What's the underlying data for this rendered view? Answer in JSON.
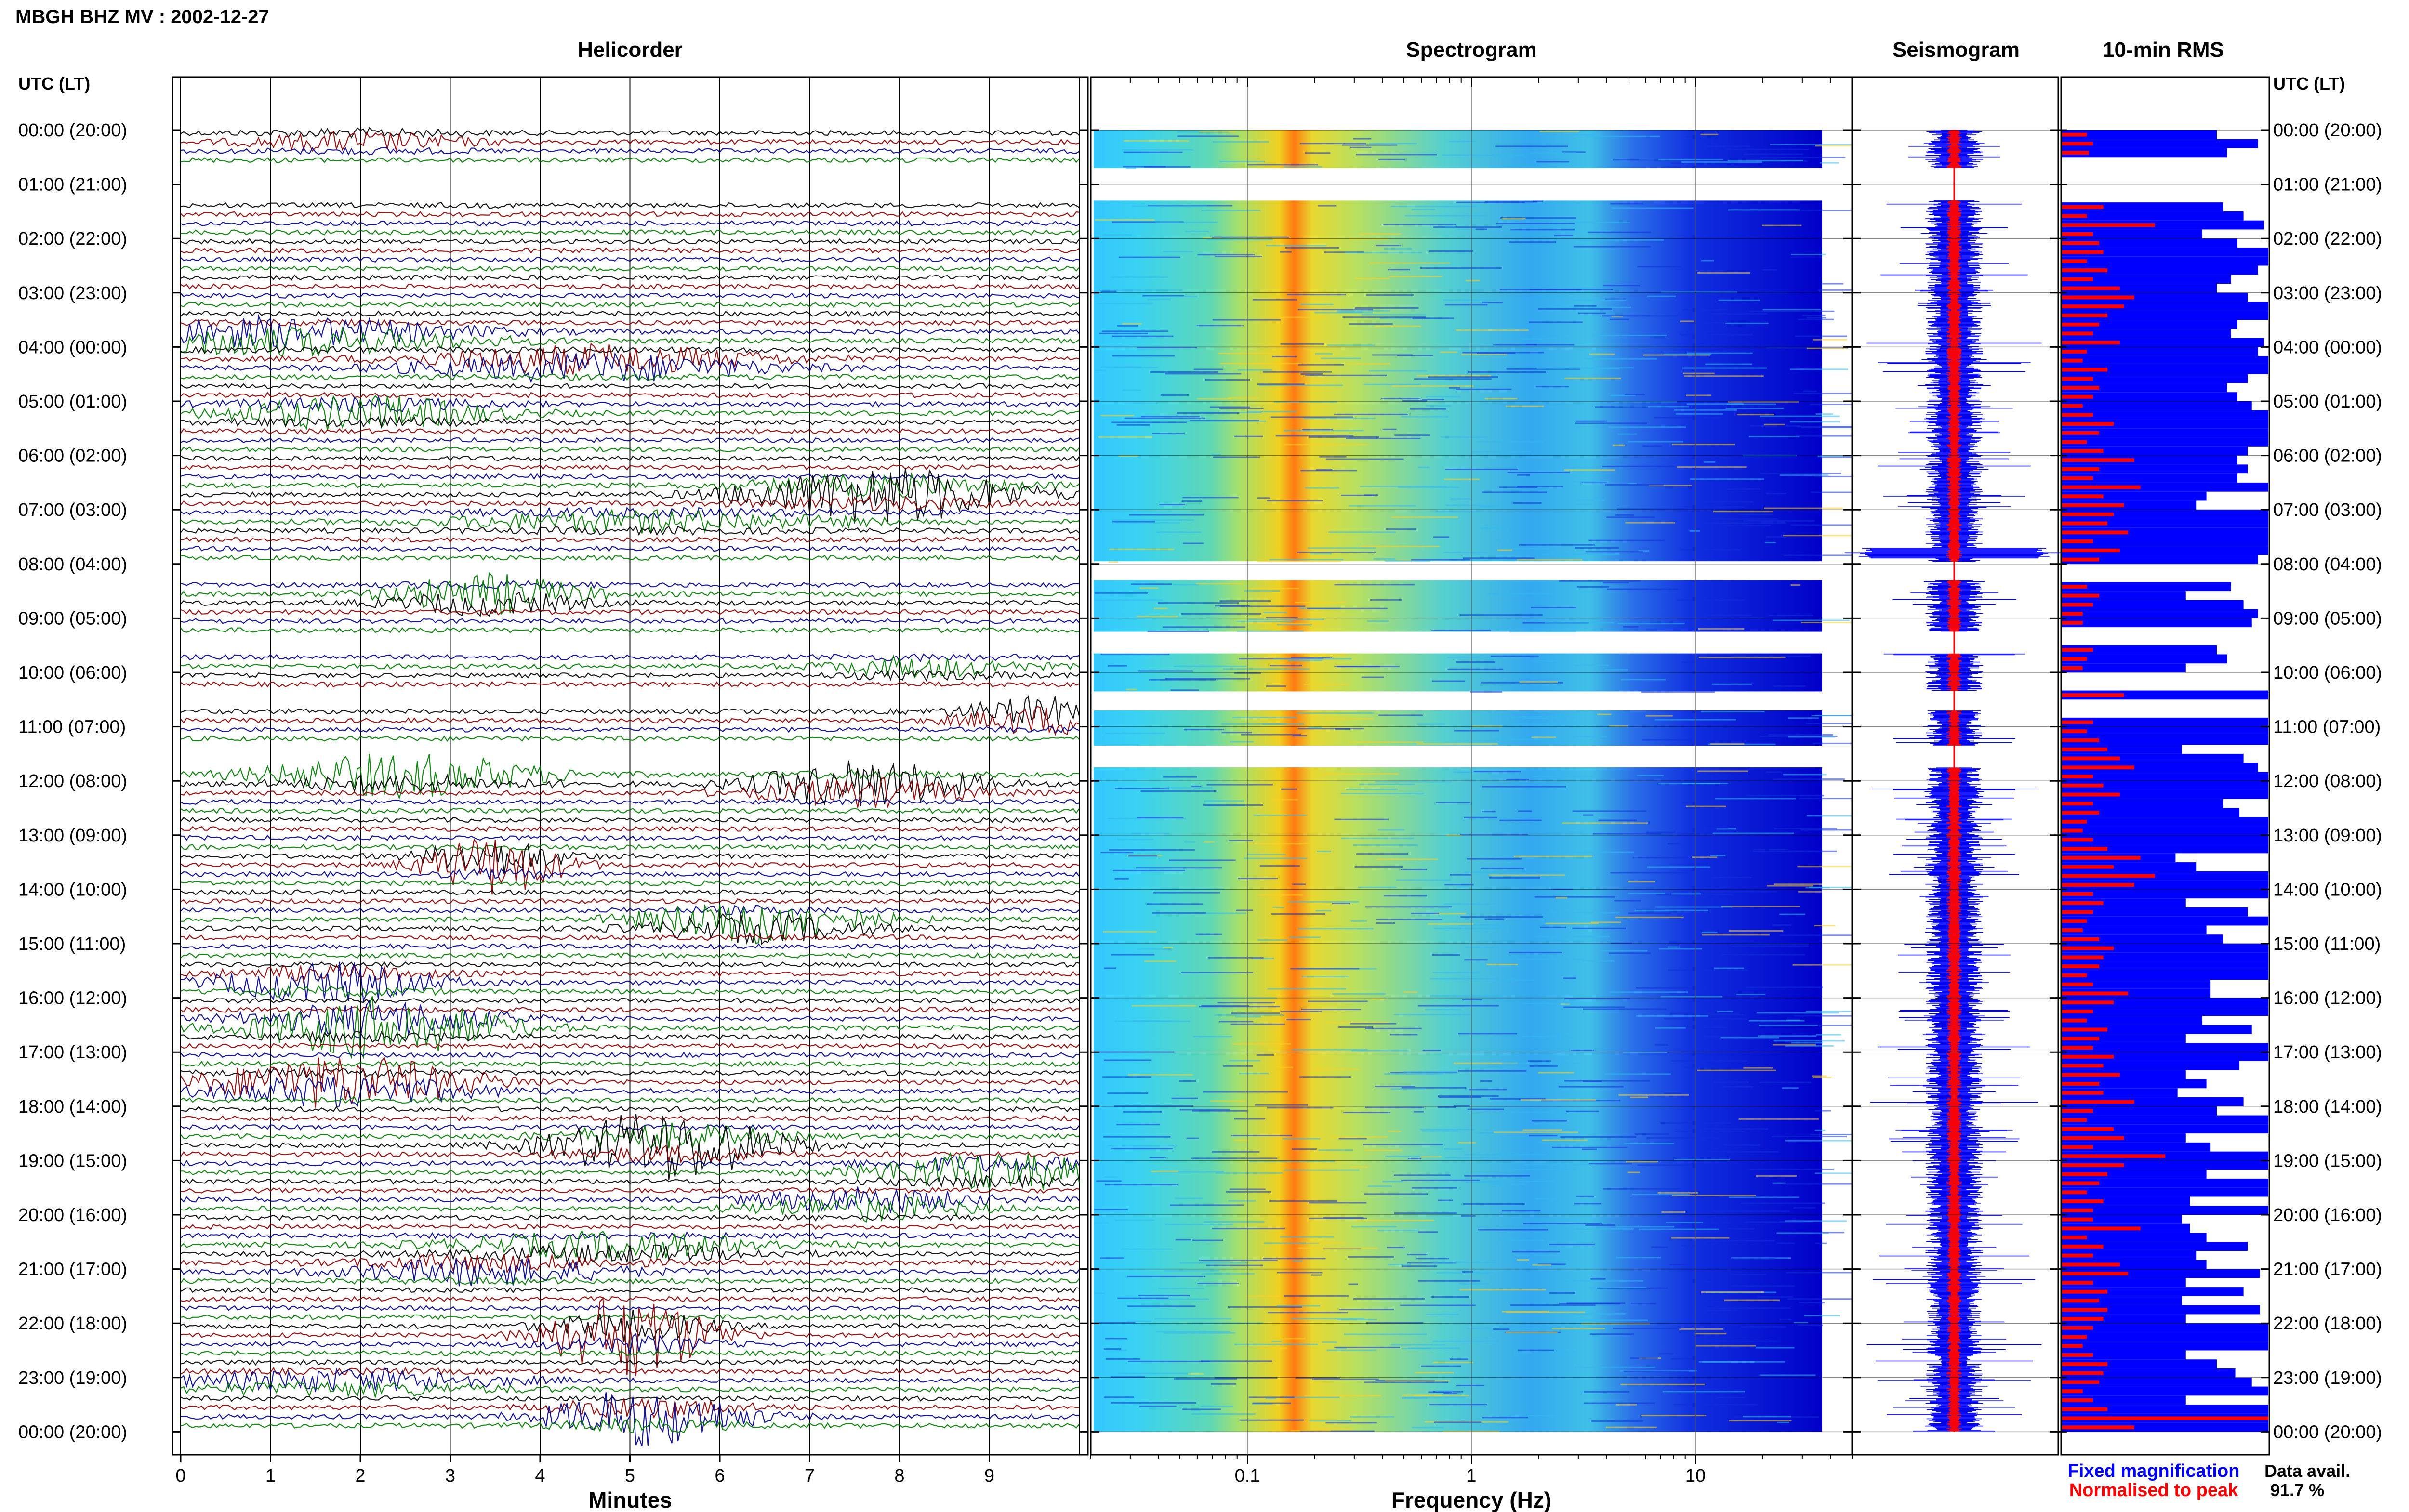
{
  "header": {
    "title": "MBGH BHZ MV : 2002-12-27"
  },
  "panels": {
    "helicorder": "Helicorder",
    "spectrogram": "Spectrogram",
    "seismogram": "Seismogram",
    "rms": "10-min RMS"
  },
  "time_axis": {
    "label": "UTC (LT)",
    "ticks": [
      "00:00 (20:00)",
      "01:00 (21:00)",
      "02:00 (22:00)",
      "03:00 (23:00)",
      "04:00 (00:00)",
      "05:00 (01:00)",
      "06:00 (02:00)",
      "07:00 (03:00)",
      "08:00 (04:00)",
      "09:00 (05:00)",
      "10:00 (06:00)",
      "11:00 (07:00)",
      "12:00 (08:00)",
      "13:00 (09:00)",
      "14:00 (10:00)",
      "15:00 (11:00)",
      "16:00 (12:00)",
      "17:00 (13:00)",
      "18:00 (14:00)",
      "19:00 (15:00)",
      "20:00 (16:00)",
      "21:00 (17:00)",
      "22:00 (18:00)",
      "23:00 (19:00)",
      "00:00 (20:00)"
    ]
  },
  "minutes_axis": {
    "label": "Minutes",
    "ticks": [
      "0",
      "1",
      "2",
      "3",
      "4",
      "5",
      "6",
      "7",
      "8",
      "9"
    ]
  },
  "frequency_axis": {
    "label": "Frequency (Hz)",
    "ticks": [
      "0.1",
      "1",
      "10"
    ]
  },
  "legend": {
    "fixed": "Fixed magnification",
    "normalised": "Normalised to peak"
  },
  "availability": {
    "label": "Data avail.",
    "value": "91.7 %"
  },
  "colors": {
    "trace_cycle": [
      "#000000",
      "#8b0000",
      "#00008b",
      "#007a00"
    ],
    "fixed": "#0000ff",
    "normalised": "#ff0000",
    "spectrogram_low": "#0000c8",
    "spectrogram_high": "#ff2000"
  },
  "chart_data": [
    {
      "type": "helicorder",
      "title": "Helicorder",
      "xlabel": "Minutes",
      "xlim": [
        0,
        10
      ],
      "ylim_hours": [
        0,
        24
      ],
      "trace_minutes": 10,
      "data_gaps_hours": [
        [
          0.7,
          1.3
        ],
        [
          7.95,
          8.3
        ],
        [
          9.25,
          9.65
        ],
        [
          10.35,
          10.7
        ],
        [
          11.35,
          11.75
        ]
      ],
      "series_colors_cycle": [
        "black",
        "darkred",
        "darkblue",
        "green"
      ]
    },
    {
      "type": "heatmap",
      "title": "Spectrogram",
      "xlabel": "Frequency (Hz)",
      "x_scale": "log",
      "xlim": [
        0.02,
        50
      ],
      "ylim_hours": [
        0,
        24
      ],
      "peak_frequency_hz": 0.25
    },
    {
      "type": "seismogram",
      "title": "Seismogram",
      "series": [
        {
          "name": "Fixed magnification",
          "color": "#0000ff"
        },
        {
          "name": "Normalised to peak",
          "color": "#ff0000"
        }
      ]
    },
    {
      "type": "bar",
      "title": "10-min RMS",
      "orientation": "horizontal",
      "bins_per_hour": 6,
      "series": [
        {
          "name": "Fixed magnification",
          "color": "#0000ff",
          "values": [
            0.75,
            0.95,
            0.8,
            0,
            0,
            0,
            0,
            0,
            0.78,
            0.88,
            0.98,
            0.68,
            0.85,
            1.0,
            1.0,
            0.95,
            0.82,
            0.75,
            0.9,
            1.0,
            1.0,
            0.85,
            0.82,
            0.98,
            0.95,
            1.0,
            1.0,
            0.9,
            0.8,
            0.85,
            0.92,
            1.0,
            1.0,
            1.0,
            1.0,
            0.9,
            0.85,
            0.9,
            0.85,
            1.0,
            0.7,
            0.65,
            1.0,
            1.0,
            1.0,
            1.0,
            1.0,
            0.95,
            0,
            0,
            0.82,
            0.6,
            0.88,
            0.95,
            0.92,
            0,
            0,
            0.75,
            0.8,
            0.6,
            0,
            0,
            1.0,
            0,
            0,
            1.0,
            1.0,
            1.0,
            0.58,
            0.88,
            0.95,
            1.0,
            1.0,
            1.0,
            0.78,
            0.86,
            1.0,
            1.0,
            1.0,
            1.0,
            0.55,
            0.65,
            1.0,
            1.0,
            1.0,
            0.6,
            0.9,
            1.0,
            0.7,
            0.78,
            1.0,
            1.0,
            1.0,
            1.0,
            0.72,
            0.72,
            1.0,
            1.0,
            0.68,
            0.92,
            0.6,
            1.0,
            1.0,
            0.86,
            0.6,
            0.7,
            0.56,
            0.88,
            0.75,
            1.0,
            1.0,
            0.6,
            0.72,
            1.0,
            1.0,
            0.7,
            1.0,
            1.0,
            0.62,
            1.0,
            0.58,
            0.62,
            0.7,
            0.9,
            0.65,
            0.7,
            0.96,
            0.6,
            0.88,
            0.58,
            0.96,
            0.6,
            1.0,
            1.0,
            1.0,
            0.6,
            0.75,
            0.84,
            0.92,
            1.0,
            0.6,
            1.0,
            1.0,
            1.0
          ]
        },
        {
          "name": "Normalised to peak",
          "color": "#ff0000",
          "values": [
            0.12,
            0.15,
            0.13,
            0,
            0,
            0,
            0,
            0,
            0.2,
            0.12,
            0.45,
            0.15,
            0.18,
            0.2,
            0.12,
            0.22,
            0.15,
            0.28,
            0.35,
            0.3,
            0.22,
            0.18,
            0.15,
            0.28,
            0.12,
            0.1,
            0.22,
            0.15,
            0.18,
            0.15,
            0.1,
            0.15,
            0.25,
            0.18,
            0.12,
            0.2,
            0.35,
            0.18,
            0.15,
            0.38,
            0.2,
            0.3,
            0.25,
            0.22,
            0.32,
            0.15,
            0.28,
            0.18,
            0,
            0,
            0.12,
            0.18,
            0.15,
            0.1,
            0.1,
            0,
            0,
            0.15,
            0.12,
            0.1,
            0,
            0,
            0.3,
            0,
            0,
            0.15,
            0.12,
            0.18,
            0.22,
            0.28,
            0.35,
            0.15,
            0.2,
            0.28,
            0.15,
            0.18,
            0.12,
            0.1,
            0.15,
            0.22,
            0.38,
            0.25,
            0.45,
            0.35,
            0.15,
            0.2,
            0.15,
            0.12,
            0.1,
            0.18,
            0.25,
            0.2,
            0.18,
            0.12,
            0.15,
            0.32,
            0.25,
            0.15,
            0.12,
            0.22,
            0.18,
            0.15,
            0.25,
            0.2,
            0.28,
            0.18,
            0.2,
            0.35,
            0.15,
            0.12,
            0.25,
            0.3,
            0.15,
            0.5,
            0.3,
            0.22,
            0.18,
            0.12,
            0.2,
            0.15,
            0.15,
            0.38,
            0.12,
            0.2,
            0.15,
            0.28,
            0.32,
            0.15,
            0.22,
            0.18,
            0.22,
            0.2,
            0.15,
            0.12,
            0.1,
            0.15,
            0.22,
            0.2,
            0.18,
            0.1,
            0.15,
            0.22,
            1.0,
            0.35
          ]
        }
      ]
    }
  ]
}
